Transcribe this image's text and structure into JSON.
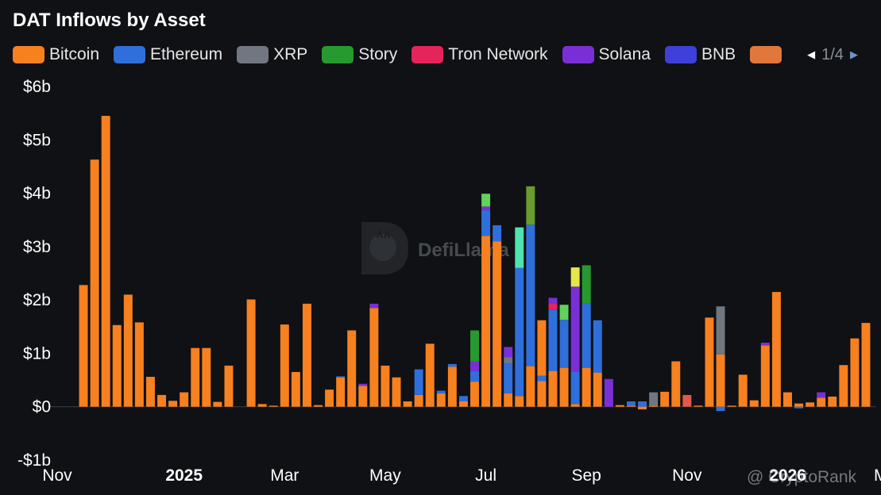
{
  "title": "DAT Inflows by Asset",
  "legend": {
    "items": [
      {
        "name": "Bitcoin",
        "color": "#f7801f"
      },
      {
        "name": "Ethereum",
        "color": "#2f6fdc"
      },
      {
        "name": "XRP",
        "color": "#707780"
      },
      {
        "name": "Story",
        "color": "#269a2e"
      },
      {
        "name": "Tron Network",
        "color": "#e5245c"
      },
      {
        "name": "Solana",
        "color": "#7a2fd6"
      },
      {
        "name": "BNB",
        "color": "#3f3fd9"
      },
      {
        "name": "",
        "color": "#e2773b"
      }
    ],
    "pager": "1/4",
    "prev_icon": "caret-left-icon",
    "next_icon": "caret-right-icon"
  },
  "watermarks": {
    "defillama": "DefiLlama",
    "cryptorank": "@ CryptoRank"
  },
  "chart_data": {
    "type": "bar",
    "stacked": true,
    "ylim": [
      -1,
      6
    ],
    "y_ticks": [
      {
        "value": 6,
        "label": "$6b"
      },
      {
        "value": 5,
        "label": "$5b"
      },
      {
        "value": 4,
        "label": "$4b"
      },
      {
        "value": 3,
        "label": "$3b"
      },
      {
        "value": 2,
        "label": "$2b"
      },
      {
        "value": 1,
        "label": "$1b"
      },
      {
        "value": 0,
        "label": "$0"
      },
      {
        "value": -1,
        "label": "-$1b"
      }
    ],
    "x_ticks": [
      {
        "index": 0,
        "label": "Nov",
        "bold": false
      },
      {
        "index": 9,
        "label": "2025",
        "bold": true
      },
      {
        "index": 18,
        "label": "Mar",
        "bold": false
      },
      {
        "index": 27,
        "label": "May",
        "bold": false
      },
      {
        "index": 36,
        "label": "Jul",
        "bold": false
      },
      {
        "index": 45,
        "label": "Sep",
        "bold": false
      },
      {
        "index": 54,
        "label": "Nov",
        "bold": false
      },
      {
        "index": 63,
        "label": "2026",
        "bold": true
      },
      {
        "index": 72,
        "label": "Mar",
        "bold": false
      }
    ],
    "series_colors": {
      "Bitcoin": "#f7801f",
      "Ethereum": "#2f6fdc",
      "XRP": "#707780",
      "Story": "#269a2e",
      "Tron Network": "#e5245c",
      "Solana": "#7a2fd6",
      "BNB": "#3f3fd9",
      "Lime": "#5fd35a",
      "Teal": "#4fe3b0",
      "Olive": "#6a9a30",
      "Yellow": "#e6e64a",
      "Coral": "#e05a4a"
    },
    "bars": [
      [
        [
          "Bitcoin",
          2.28
        ]
      ],
      [
        [
          "Bitcoin",
          4.63
        ]
      ],
      [
        [
          "Bitcoin",
          5.45
        ]
      ],
      [
        [
          "Bitcoin",
          1.53
        ]
      ],
      [
        [
          "Bitcoin",
          2.1
        ]
      ],
      [
        [
          "Bitcoin",
          1.58
        ]
      ],
      [
        [
          "Bitcoin",
          0.56
        ]
      ],
      [
        [
          "Bitcoin",
          0.22
        ]
      ],
      [
        [
          "Bitcoin",
          0.11
        ]
      ],
      [
        [
          "Bitcoin",
          0.27
        ]
      ],
      [
        [
          "Bitcoin",
          1.1
        ]
      ],
      [
        [
          "Bitcoin",
          1.1
        ]
      ],
      [
        [
          "Bitcoin",
          0.09
        ]
      ],
      [
        [
          "Bitcoin",
          0.77
        ]
      ],
      [
        [
          "Bitcoin",
          0.0
        ]
      ],
      [
        [
          "Bitcoin",
          2.01
        ]
      ],
      [
        [
          "Bitcoin",
          0.05
        ]
      ],
      [
        [
          "Bitcoin",
          0.02
        ]
      ],
      [
        [
          "Bitcoin",
          1.54
        ]
      ],
      [
        [
          "Bitcoin",
          0.65
        ]
      ],
      [
        [
          "Bitcoin",
          1.93
        ]
      ],
      [
        [
          "Bitcoin",
          0.03
        ]
      ],
      [
        [
          "Bitcoin",
          0.32
        ]
      ],
      [
        [
          "Bitcoin",
          0.55
        ],
        [
          "Ethereum",
          0.02
        ]
      ],
      [
        [
          "Bitcoin",
          1.43
        ]
      ],
      [
        [
          "Bitcoin",
          0.39
        ],
        [
          "Solana",
          0.04
        ]
      ],
      [
        [
          "Bitcoin",
          1.85
        ],
        [
          "Solana",
          0.08
        ]
      ],
      [
        [
          "Bitcoin",
          0.77
        ]
      ],
      [
        [
          "Bitcoin",
          0.55
        ]
      ],
      [
        [
          "Bitcoin",
          0.1
        ]
      ],
      [
        [
          "Bitcoin",
          0.22
        ],
        [
          "Ethereum",
          0.48
        ]
      ],
      [
        [
          "Bitcoin",
          1.18
        ]
      ],
      [
        [
          "Bitcoin",
          0.25
        ],
        [
          "Ethereum",
          0.05
        ]
      ],
      [
        [
          "Bitcoin",
          0.75
        ],
        [
          "Ethereum",
          0.05
        ]
      ],
      [
        [
          "Bitcoin",
          0.1
        ],
        [
          "Ethereum",
          0.1
        ]
      ],
      [
        [
          "Bitcoin",
          0.47
        ],
        [
          "Ethereum",
          0.2
        ],
        [
          "Solana",
          0.18
        ],
        [
          "Story",
          0.58
        ]
      ],
      [
        [
          "Bitcoin",
          3.2
        ],
        [
          "Ethereum",
          0.48
        ],
        [
          "Solana",
          0.07
        ],
        [
          "Lime",
          0.24
        ]
      ],
      [
        [
          "Bitcoin",
          3.1
        ],
        [
          "Ethereum",
          0.3
        ]
      ],
      [
        [
          "Bitcoin",
          0.25
        ],
        [
          "Ethereum",
          0.56
        ],
        [
          "XRP",
          0.12
        ],
        [
          "Solana",
          0.19
        ]
      ],
      [
        [
          "Bitcoin",
          0.2
        ],
        [
          "Ethereum",
          2.4
        ],
        [
          "Teal",
          0.76
        ]
      ],
      [
        [
          "Bitcoin",
          0.76
        ],
        [
          "Ethereum",
          2.65
        ],
        [
          "Olive",
          0.72
        ]
      ],
      [
        [
          "Bitcoin",
          0.48
        ],
        [
          "Ethereum",
          0.1
        ],
        [
          "Bitcoin",
          1.04
        ]
      ],
      [
        [
          "Bitcoin",
          0.67
        ],
        [
          "Ethereum",
          1.15
        ],
        [
          "Tron Network",
          0.12
        ],
        [
          "Solana",
          0.1
        ]
      ],
      [
        [
          "Bitcoin",
          0.73
        ],
        [
          "Ethereum",
          0.9
        ],
        [
          "Lime",
          0.28
        ]
      ],
      [
        [
          "Bitcoin",
          0.05
        ],
        [
          "Ethereum",
          0.6
        ],
        [
          "Solana",
          1.6
        ],
        [
          "Yellow",
          0.36
        ]
      ],
      [
        [
          "Bitcoin",
          0.73
        ],
        [
          "Ethereum",
          1.2
        ],
        [
          "Story",
          0.72
        ]
      ],
      [
        [
          "Bitcoin",
          0.64
        ],
        [
          "Ethereum",
          0.98
        ]
      ],
      [
        [
          "Solana",
          0.52
        ]
      ],
      [
        [
          "Bitcoin",
          0.03
        ]
      ],
      [
        [
          "Bitcoin",
          0.02
        ],
        [
          "Ethereum",
          0.08
        ]
      ],
      [
        [
          "Ethereum",
          0.1
        ],
        [
          "Bitcoin",
          -0.05
        ]
      ],
      [
        [
          "Bitcoin",
          0.02
        ],
        [
          "XRP",
          0.25
        ]
      ],
      [
        [
          "Bitcoin",
          0.28
        ]
      ],
      [
        [
          "Bitcoin",
          0.85
        ]
      ],
      [
        [
          "Coral",
          0.22
        ]
      ],
      [
        [
          "Bitcoin",
          0.02
        ]
      ],
      [
        [
          "Bitcoin",
          1.67
        ]
      ],
      [
        [
          "Bitcoin",
          0.98
        ],
        [
          "XRP",
          0.9
        ],
        [
          "Ethereum",
          -0.08
        ]
      ],
      [
        [
          "Bitcoin",
          0.02
        ]
      ],
      [
        [
          "Bitcoin",
          0.6
        ]
      ],
      [
        [
          "Bitcoin",
          0.12
        ]
      ],
      [
        [
          "Bitcoin",
          1.15
        ],
        [
          "Solana",
          0.05
        ]
      ],
      [
        [
          "Bitcoin",
          2.15
        ]
      ],
      [
        [
          "Bitcoin",
          0.27
        ]
      ],
      [
        [
          "Bitcoin",
          0.06
        ],
        [
          "Ethereum",
          -0.03
        ]
      ],
      [
        [
          "Bitcoin",
          0.08
        ]
      ],
      [
        [
          "Bitcoin",
          0.17
        ],
        [
          "Solana",
          0.1
        ]
      ],
      [
        [
          "Bitcoin",
          0.19
        ]
      ],
      [
        [
          "Bitcoin",
          0.78
        ]
      ],
      [
        [
          "Bitcoin",
          1.28
        ]
      ],
      [
        [
          "Bitcoin",
          1.57
        ]
      ]
    ]
  }
}
